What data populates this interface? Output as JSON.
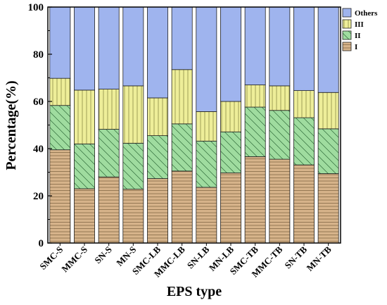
{
  "chart_data": {
    "type": "bar",
    "stacked": true,
    "categories": [
      "SMC-S",
      "MMC-S",
      "SN-S",
      "MN-S",
      "SMC-LB",
      "MMC-LB",
      "SN-LB",
      "MN-LB",
      "SMC-TB",
      "MMC-TB",
      "SN-TB",
      "MN-TB"
    ],
    "series": [
      {
        "name": "I",
        "color": "#d6b38a",
        "pattern": "horizontal-lines",
        "values": [
          39.5,
          23.0,
          28.0,
          22.8,
          27.3,
          30.5,
          23.6,
          29.7,
          36.6,
          35.5,
          33.1,
          29.4
        ]
      },
      {
        "name": "II",
        "color": "#9fdc9f",
        "pattern": "diagonal-lines",
        "values": [
          18.8,
          19.0,
          20.2,
          19.5,
          18.2,
          20.0,
          19.6,
          17.4,
          21.0,
          20.7,
          20.0,
          19.0
        ]
      },
      {
        "name": "III",
        "color": "#eeee99",
        "pattern": "vertical-lines",
        "values": [
          11.5,
          22.8,
          17.0,
          24.3,
          16.0,
          23.0,
          12.5,
          12.9,
          9.4,
          10.4,
          11.5,
          15.4
        ]
      },
      {
        "name": "Others",
        "color": "#9fb4ee",
        "pattern": "solid",
        "values": [
          30.2,
          35.2,
          34.8,
          33.4,
          38.5,
          26.5,
          44.3,
          40.0,
          33.0,
          33.4,
          35.4,
          36.2
        ]
      }
    ],
    "xlabel": "EPS type",
    "ylabel": "Percentage(%)",
    "ylim": [
      0,
      100
    ],
    "yticks": [
      "0",
      "20",
      "40",
      "60",
      "80",
      "100"
    ],
    "legend_position": "top-right-outside",
    "legend_order": [
      "Others",
      "III",
      "II",
      "I"
    ],
    "grid": false
  }
}
